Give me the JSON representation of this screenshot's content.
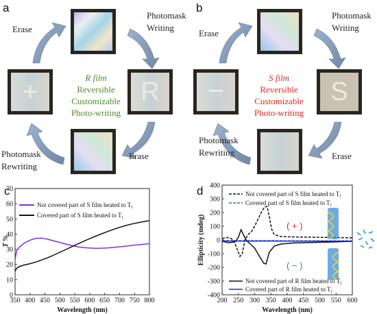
{
  "panels": {
    "a": {
      "letter": "a",
      "center_lines": [
        "R film",
        "Reversible",
        "Customizable",
        "Photo-writing"
      ],
      "center_color": "#4e8a2a",
      "labels": {
        "erase_top": "Erase",
        "photomask_writing": [
          "Photomask",
          "Writing"
        ],
        "erase_bottom": "Erase",
        "photomask_rewriting": [
          "Photomask",
          "Rewriting"
        ]
      },
      "film_glyphs": {
        "top": "",
        "right": "R",
        "bottom": "",
        "left": "+"
      }
    },
    "b": {
      "letter": "b",
      "center_lines": [
        "S film",
        "Reversible",
        "Customizable",
        "Photo-writing"
      ],
      "center_color": "#e8231c",
      "labels": {
        "erase_top": "Erase",
        "photomask_writing": [
          "Photomask",
          "Writing"
        ],
        "erase_bottom": "Erase",
        "photomask_rewriting": [
          "Photomask",
          "Rewriting"
        ]
      },
      "film_glyphs": {
        "top": "",
        "right": "S",
        "bottom": "",
        "left": "−"
      }
    }
  },
  "chart_data": [
    {
      "panel": "c",
      "type": "line",
      "ylabel": "T %",
      "xlabel": "Wavelength (nm)",
      "xlim": [
        350,
        800
      ],
      "ylim": [
        0,
        70
      ],
      "xticks": [
        350,
        400,
        450,
        500,
        550,
        600,
        650,
        700,
        750,
        800
      ],
      "yticks": [
        0,
        10,
        20,
        30,
        40,
        50,
        60,
        70
      ],
      "legend_position": "top-left",
      "series": [
        {
          "name": "Not covered part of S film heated to T",
          "subscript": "i",
          "color": "#7a2ff0",
          "style": "solid",
          "x": [
            350,
            355,
            365,
            380,
            400,
            420,
            440,
            460,
            480,
            500,
            520,
            540,
            560,
            580,
            600,
            620,
            640,
            660,
            680,
            700,
            720,
            740,
            760,
            780,
            800
          ],
          "y": [
            23,
            29,
            31.5,
            34,
            36,
            37.2,
            37.4,
            36.6,
            35.5,
            34.5,
            33.4,
            32.5,
            31.6,
            31.1,
            30.8,
            30.6,
            30.7,
            30.9,
            31.2,
            31.6,
            32.0,
            32.5,
            32.9,
            33.3,
            33.7
          ]
        },
        {
          "name": "Covered part of S film heated to T",
          "subscript": "i",
          "color": "#111111",
          "style": "solid",
          "x": [
            350,
            355,
            365,
            380,
            400,
            420,
            440,
            460,
            480,
            500,
            520,
            540,
            560,
            580,
            600,
            620,
            640,
            660,
            680,
            700,
            720,
            740,
            760,
            780,
            800
          ],
          "y": [
            15.5,
            17.5,
            18.7,
            19.6,
            20.5,
            21.6,
            23.0,
            24.5,
            26.2,
            28.0,
            29.8,
            31.7,
            33.5,
            35.3,
            37.0,
            38.6,
            40.2,
            41.7,
            43.1,
            44.4,
            45.6,
            46.6,
            47.4,
            48.2,
            48.8
          ]
        }
      ]
    },
    {
      "panel": "d",
      "type": "line",
      "ylabel": "Ellipticity (mdeg)",
      "xlabel": "Wavelength (nm)",
      "xlim": [
        200,
        600
      ],
      "ylim": [
        -400,
        400
      ],
      "xticks": [
        200,
        250,
        300,
        350,
        400,
        450,
        500,
        550,
        600
      ],
      "yticks": [
        -400,
        -300,
        -200,
        -100,
        0,
        100,
        200,
        300,
        400
      ],
      "annotations": [
        "( + )",
        "( − )"
      ],
      "series": [
        {
          "name": "Not covered part of S film heated to T",
          "subscript": "i",
          "color": "#111111",
          "style": "dashed",
          "x": [
            200,
            215,
            225,
            235,
            245,
            255,
            262,
            270,
            280,
            290,
            300,
            310,
            320,
            330,
            338,
            345,
            352,
            360,
            380,
            420,
            480,
            540,
            600
          ],
          "y": [
            10,
            18,
            14,
            0,
            -60,
            -120,
            -100,
            0,
            40,
            60,
            100,
            150,
            200,
            240,
            245,
            170,
            80,
            40,
            25,
            22,
            20,
            18,
            15
          ]
        },
        {
          "name": "Covered part of S film heated to T",
          "subscript": "i",
          "color": "#2266dd",
          "style": "dashed",
          "x": [
            200,
            250,
            300,
            350,
            400,
            450,
            500,
            550,
            600
          ],
          "y": [
            -5,
            -5,
            -5,
            -5,
            -6,
            -6,
            -6,
            -6,
            -6
          ]
        },
        {
          "name": "Not covered part of R film heated to T",
          "subscript": "i",
          "color": "#111111",
          "style": "solid",
          "x": [
            200,
            220,
            240,
            250,
            258,
            265,
            275,
            285,
            300,
            315,
            328,
            335,
            345,
            360,
            380,
            420,
            480,
            540,
            600
          ],
          "y": [
            -10,
            -20,
            -15,
            20,
            75,
            40,
            -5,
            -25,
            -60,
            -120,
            -170,
            -175,
            -90,
            -45,
            -30,
            -22,
            -18,
            -15,
            -10
          ]
        },
        {
          "name": "Covered part of R film heated to T",
          "subscript": "i",
          "color": "#2222ee",
          "style": "solid",
          "x": [
            200,
            250,
            300,
            350,
            400,
            450,
            500,
            550,
            600
          ],
          "y": [
            -8,
            -8,
            -8,
            -8,
            -9,
            -9,
            -9,
            -9,
            -9
          ]
        }
      ]
    }
  ]
}
